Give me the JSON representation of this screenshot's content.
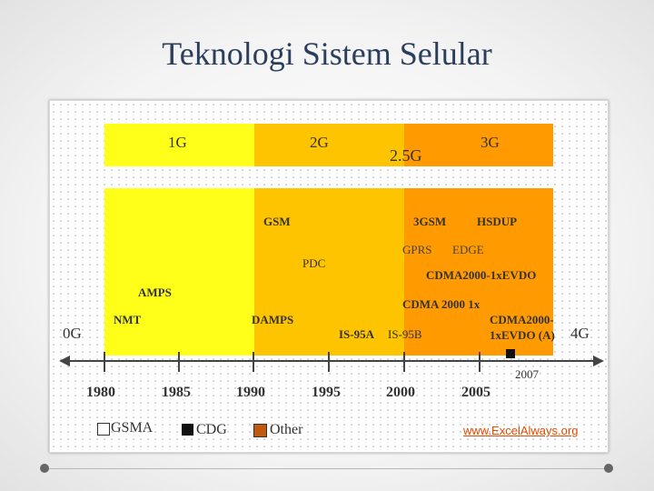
{
  "title": "Teknologi Sistem Selular",
  "generations": {
    "g1": "1G",
    "g2": "2G",
    "g25": "2.5G",
    "g3": "3G",
    "g0": "0G",
    "g4": "4G"
  },
  "technologies": {
    "amps": "AMPS",
    "nmt": "NMT",
    "gsm": "GSM",
    "pdc": "PDC",
    "damps": "DAMPS",
    "is95a": "IS-95A",
    "is95b": "IS-95B",
    "gprs": "GPRS",
    "edge": "EDGE",
    "g3gsm": "3GSM",
    "hsdup": "HSDUP",
    "cdma2000_evdo": "CDMA2000-1xEVDO",
    "cdma2000_1x": "CDMA 2000 1x",
    "cdma2000_evdo_a_1": "CDMA2000-",
    "cdma2000_evdo_a_2": "1xEVDO (A)"
  },
  "timeline": {
    "years": [
      "1980",
      "1985",
      "1990",
      "1995",
      "2000",
      "2005"
    ],
    "marker_year": "2007"
  },
  "legend": {
    "gsma": "GSMA",
    "cdg": "CDG",
    "other": "Other"
  },
  "credit": "www.ExcelAlways.org",
  "colors": {
    "yellow": "#ffff1a",
    "gold": "#ffc400",
    "orange": "#ff9a00",
    "other_swatch": "#c05a10"
  }
}
